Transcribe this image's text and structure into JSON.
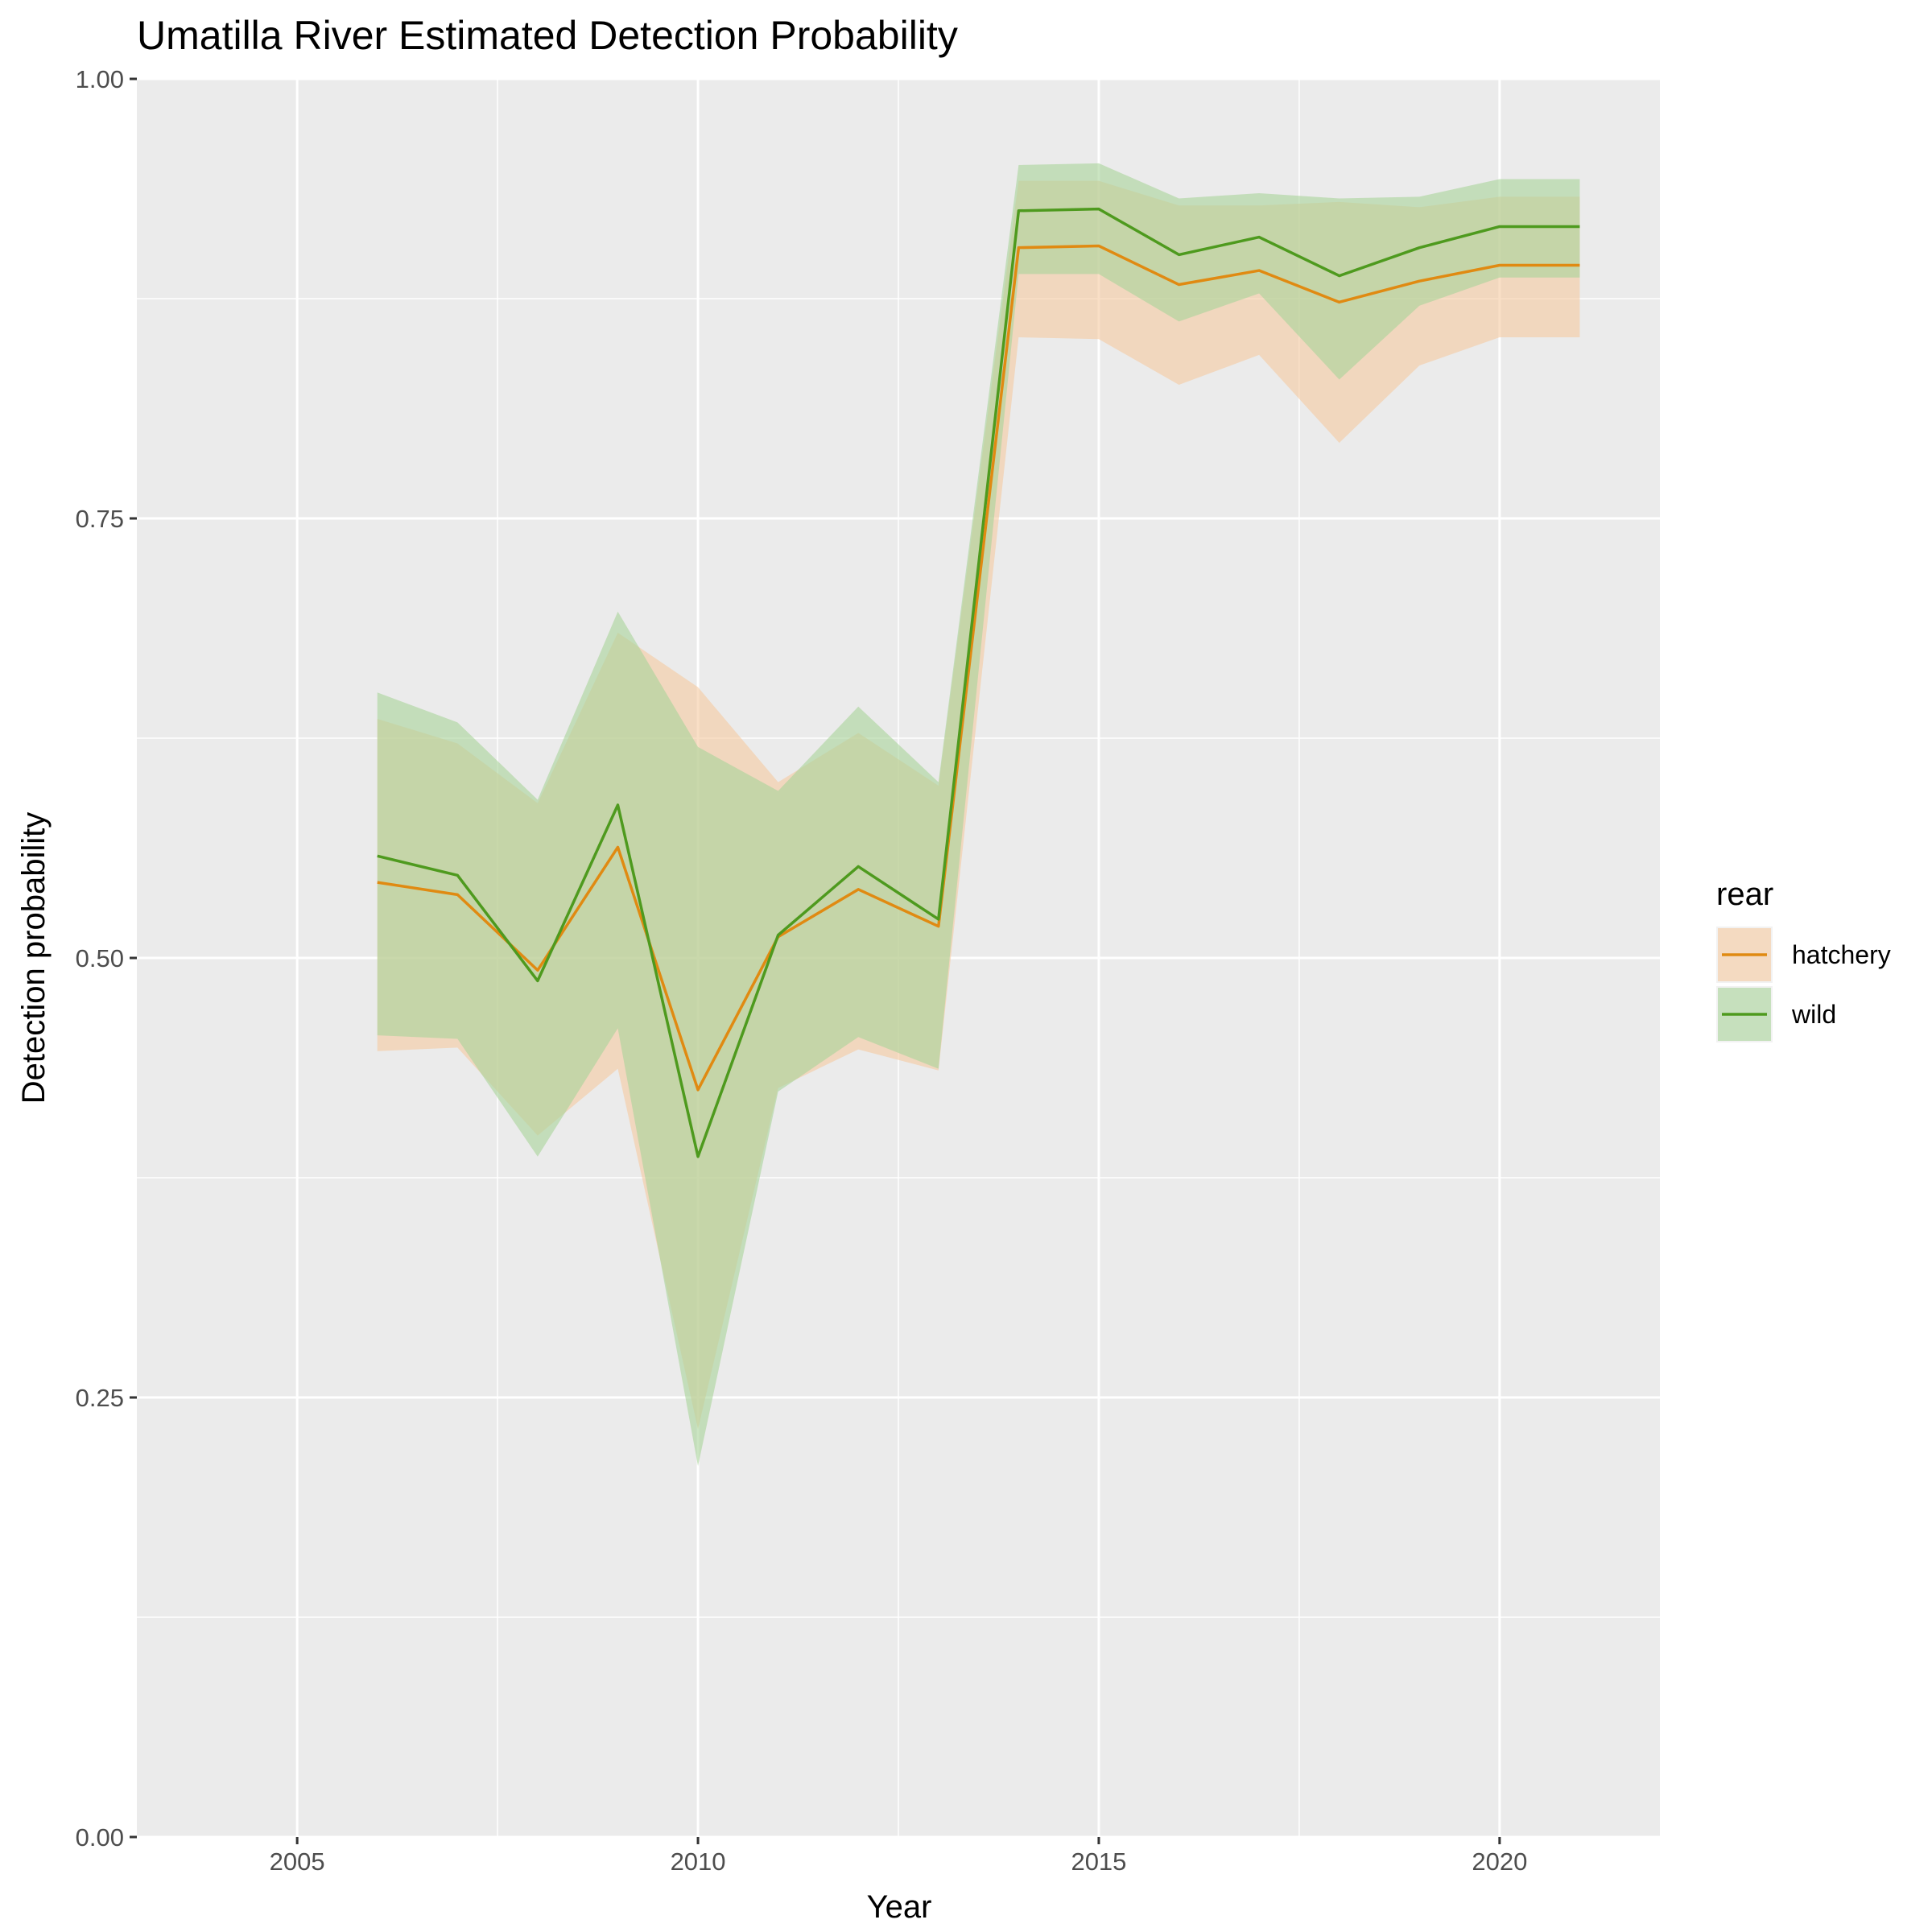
{
  "chart_data": {
    "type": "line",
    "title": "Umatilla River Estimated Detection Probability",
    "xlabel": "Year",
    "ylabel": "Detection probability",
    "xlim": [
      2003,
      2022
    ],
    "ylim": [
      0,
      1
    ],
    "x_ticks": [
      2005,
      2010,
      2015,
      2020
    ],
    "x_tick_labels": [
      "2005",
      "2010",
      "2015",
      "2020"
    ],
    "y_ticks": [
      0,
      0.25,
      0.5,
      0.75,
      1.0
    ],
    "y_tick_labels": [
      "0.00",
      "0.25",
      "0.50",
      "0.75",
      "1.00"
    ],
    "grid": true,
    "legend": {
      "title": "rear",
      "placement": "right",
      "entries": [
        "hatchery",
        "wild"
      ]
    },
    "x": [
      2006,
      2007,
      2008,
      2009,
      2010,
      2011,
      2012,
      2013,
      2014,
      2015,
      2016,
      2017,
      2018,
      2019,
      2020,
      2021
    ],
    "series": [
      {
        "name": "hatchery",
        "line_color": "#E08A12",
        "fill_color": "#F5C9A0",
        "values": [
          0.543,
          0.536,
          0.493,
          0.563,
          0.425,
          0.512,
          0.539,
          0.518,
          0.904,
          0.905,
          0.883,
          0.891,
          0.873,
          0.885,
          0.894,
          0.894
        ],
        "lower": [
          0.447,
          0.449,
          0.399,
          0.437,
          0.232,
          0.426,
          0.448,
          0.436,
          0.853,
          0.852,
          0.826,
          0.843,
          0.793,
          0.837,
          0.853,
          0.853
        ],
        "upper": [
          0.636,
          0.622,
          0.588,
          0.685,
          0.654,
          0.6,
          0.628,
          0.598,
          0.942,
          0.942,
          0.928,
          0.928,
          0.93,
          0.927,
          0.933,
          0.933
        ]
      },
      {
        "name": "wild",
        "line_color": "#4E9A1E",
        "fill_color": "#A9D39A",
        "values": [
          0.558,
          0.547,
          0.487,
          0.587,
          0.387,
          0.513,
          0.552,
          0.522,
          0.925,
          0.926,
          0.9,
          0.91,
          0.888,
          0.904,
          0.916,
          0.916
        ],
        "lower": [
          0.456,
          0.454,
          0.387,
          0.46,
          0.211,
          0.424,
          0.455,
          0.437,
          0.889,
          0.889,
          0.862,
          0.878,
          0.829,
          0.871,
          0.887,
          0.887
        ],
        "upper": [
          0.651,
          0.634,
          0.59,
          0.697,
          0.62,
          0.595,
          0.643,
          0.6,
          0.951,
          0.952,
          0.932,
          0.935,
          0.932,
          0.933,
          0.943,
          0.943
        ]
      }
    ]
  }
}
